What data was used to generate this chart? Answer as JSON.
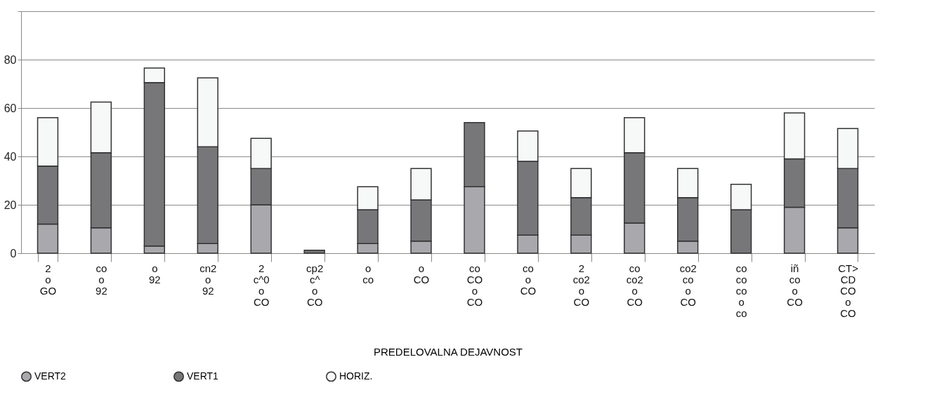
{
  "chart_data": {
    "type": "bar",
    "stacked": true,
    "xlabel": "PREDELOVALNA DEJAVNOST",
    "categories": [
      "2\no\nGO",
      "co\no\n92",
      "o\n92",
      "cn2\no\n92",
      "2\nc^0\no\nCO",
      "cp2\nc^\no\nCO",
      "o\nco",
      "o\nCO",
      "co\nCO\no\nCO",
      "co\no\nCO",
      "2\nco2\no\nCO",
      "co\nco2\no\nCO",
      "co2\nco\no\nCO",
      "co\nco\nco\no\nco",
      "iñ\nco\no\nCO",
      "CT>\nCD\nCO\no\nCO"
    ],
    "series": [
      {
        "name": "VERT2",
        "color": "#a9a9ad",
        "values": [
          12,
          10.5,
          3,
          4,
          20,
          0,
          4,
          5,
          27.5,
          7.5,
          7.5,
          12.5,
          5,
          0,
          19,
          10.5
        ]
      },
      {
        "name": "VERT1",
        "color": "#77777a",
        "values": [
          24,
          31,
          67.5,
          40,
          15,
          1.2,
          14,
          17,
          26.5,
          30.5,
          15.5,
          29,
          18,
          18,
          20,
          24.5
        ]
      },
      {
        "name": "HORIZ.",
        "color": "#f7f9f9",
        "values": [
          20,
          21,
          6,
          28.5,
          12.5,
          0,
          9.5,
          13,
          0,
          12.5,
          12,
          14.5,
          12,
          10.5,
          19,
          16.5
        ]
      }
    ],
    "ylim": [
      0,
      100
    ],
    "yticks": [
      0,
      20,
      40,
      60,
      80,
      {
        "value": 100,
        "label": null
      }
    ],
    "grid": "y",
    "legend": "bottom",
    "marker": "circle"
  }
}
